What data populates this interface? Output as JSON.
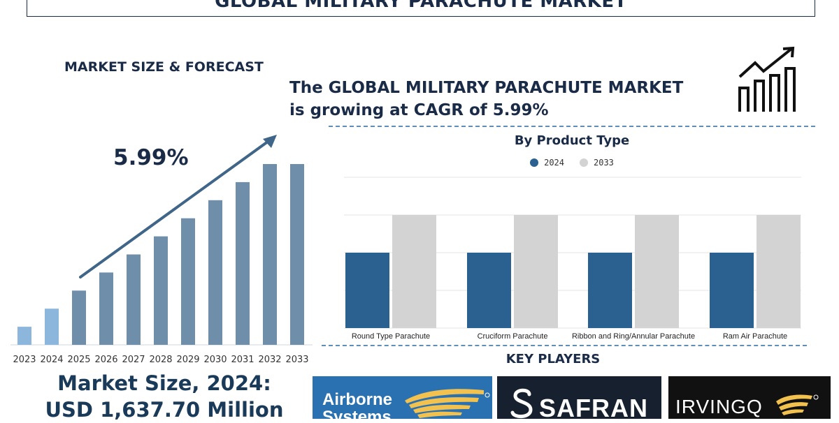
{
  "title": "GLOBAL MILITARY PARACHUTE MARKET",
  "left_panel": {
    "heading": "MARKET SIZE & FORECAST",
    "cagr_value": "5.99%",
    "market_size_line1": "Market Size, 2024:",
    "market_size_line2": "USD 1,637.70 Million"
  },
  "headline": {
    "line1": "The GLOBAL MILITARY PARACHUTE MARKET",
    "line2": "is growing at CAGR of 5.99%"
  },
  "key_players_heading": "KEY PLAYERS",
  "logos": {
    "airborne": {
      "line1": "Airborne",
      "line2": "Systems"
    },
    "safran": "SAFRAN",
    "irvin": "IRVINGQ"
  },
  "colors": {
    "navy": "#1a2b48",
    "bar_2024": "#2a6190",
    "bar_2033": "#d3d3d3",
    "forecast_bar": "#6f8eaa",
    "first_bars": "#8cb6dc",
    "dash": "#5f8fb8"
  },
  "chart_data": [
    {
      "type": "bar",
      "categories": [
        "2023",
        "2024",
        "2025",
        "2026",
        "2027",
        "2028",
        "2029",
        "2030",
        "2031",
        "2032",
        "2033"
      ],
      "values": [
        1,
        2,
        3,
        4,
        5,
        6,
        7,
        8,
        9,
        10,
        10
      ],
      "annotation": "5.99%",
      "ylim": [
        0,
        10
      ]
    },
    {
      "type": "bar",
      "title": "By Product Type",
      "categories": [
        "Round Type Parachute",
        "Cruciform Parachute",
        "Ribbon and Ring/Annular Parachute",
        "Ram Air Parachute"
      ],
      "series": [
        {
          "name": "2024",
          "values": [
            2,
            2,
            2,
            2
          ]
        },
        {
          "name": "2033",
          "values": [
            3,
            3,
            3,
            3
          ]
        }
      ],
      "ylim": [
        0,
        4
      ],
      "grid": true,
      "legend": "top-center"
    }
  ]
}
